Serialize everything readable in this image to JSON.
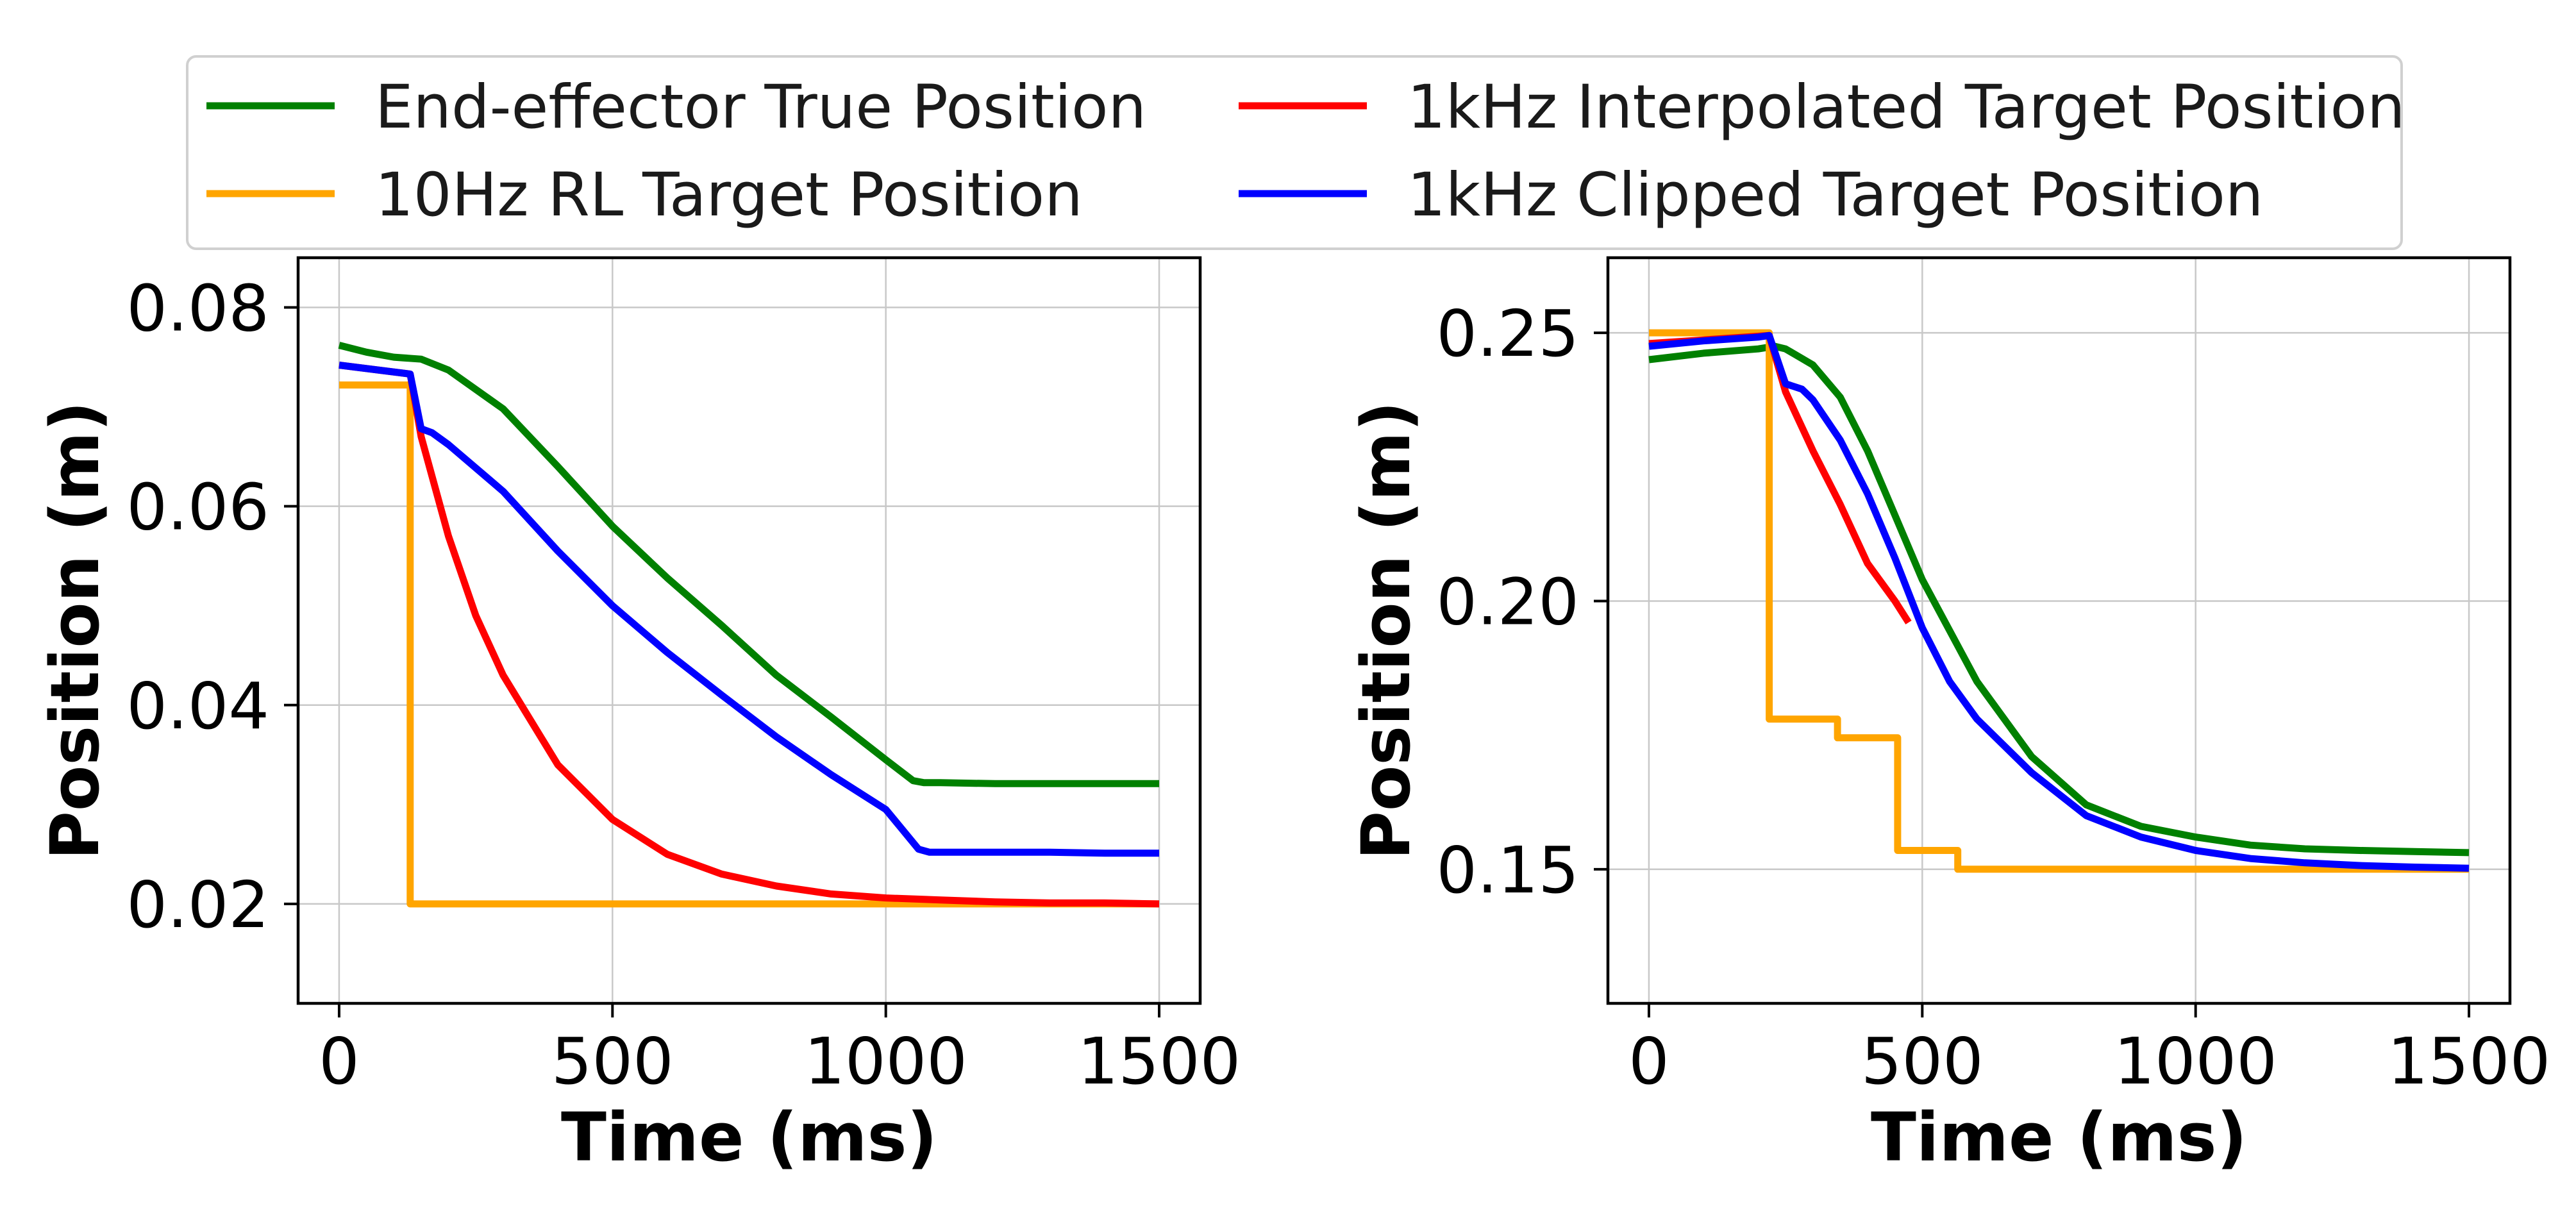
{
  "legend": {
    "placement": "top-center",
    "columns": 2,
    "entries": [
      {
        "label": "End-effector True Position",
        "color": "#008000"
      },
      {
        "label": "1kHz Interpolated Target Position",
        "color": "#ff0000"
      },
      {
        "label": "10Hz RL Target Position",
        "color": "#ffa500"
      },
      {
        "label": "1kHz Clipped Target Position",
        "color": "#0000ff"
      }
    ]
  },
  "chart_data": [
    {
      "type": "line",
      "xlabel": "Time (ms)",
      "ylabel": "Position (m)",
      "xlim": [
        -75,
        1575
      ],
      "ylim": [
        0.01,
        0.085
      ],
      "xticks": [
        0,
        500,
        1000,
        1500
      ],
      "yticks": [
        0.02,
        0.04,
        0.06,
        0.08
      ],
      "xtick_labels": [
        "0",
        "500",
        "1000",
        "1500"
      ],
      "ytick_labels": [
        "0.02",
        "0.04",
        "0.06",
        "0.08"
      ],
      "grid": true,
      "series": [
        {
          "name": "End-effector True Position",
          "color": "#008000",
          "x": [
            0,
            50,
            100,
            150,
            200,
            300,
            400,
            500,
            600,
            700,
            800,
            900,
            1000,
            1050,
            1070,
            1100,
            1200,
            1300,
            1400,
            1500
          ],
          "y": [
            0.0762,
            0.0755,
            0.075,
            0.0748,
            0.0737,
            0.0698,
            0.064,
            0.058,
            0.0528,
            0.048,
            0.043,
            0.0388,
            0.0345,
            0.0324,
            0.0322,
            0.0322,
            0.0321,
            0.0321,
            0.0321,
            0.0321
          ]
        },
        {
          "name": "10Hz RL Target Position",
          "color": "#ffa500",
          "x": [
            0,
            130,
            130,
            1500
          ],
          "y": [
            0.0722,
            0.0722,
            0.02,
            0.02
          ]
        },
        {
          "name": "1kHz Interpolated Target Position",
          "color": "#ff0000",
          "x": [
            0,
            130,
            150,
            200,
            250,
            300,
            400,
            500,
            600,
            700,
            800,
            900,
            1000,
            1100,
            1200,
            1300,
            1400,
            1500
          ],
          "y": [
            0.0742,
            0.0733,
            0.067,
            0.057,
            0.049,
            0.043,
            0.034,
            0.0285,
            0.025,
            0.023,
            0.0218,
            0.021,
            0.0206,
            0.0204,
            0.0202,
            0.0201,
            0.0201,
            0.02
          ]
        },
        {
          "name": "1kHz Clipped Target Position",
          "color": "#0000ff",
          "x": [
            0,
            130,
            150,
            170,
            200,
            300,
            400,
            500,
            600,
            700,
            800,
            900,
            1000,
            1060,
            1080,
            1100,
            1200,
            1300,
            1400,
            1500
          ],
          "y": [
            0.0742,
            0.0733,
            0.0678,
            0.0674,
            0.0662,
            0.0615,
            0.0555,
            0.05,
            0.0453,
            0.041,
            0.0368,
            0.033,
            0.0295,
            0.0255,
            0.0252,
            0.0252,
            0.0252,
            0.0252,
            0.0251,
            0.0251
          ]
        }
      ]
    },
    {
      "type": "line",
      "xlabel": "Time (ms)",
      "ylabel": "Position (m)",
      "xlim": [
        -75,
        1575
      ],
      "ylim": [
        0.125,
        0.264
      ],
      "xticks": [
        0,
        500,
        1000,
        1500
      ],
      "yticks": [
        0.15,
        0.2,
        0.25
      ],
      "xtick_labels": [
        "0",
        "500",
        "1000",
        "1500"
      ],
      "ytick_labels": [
        "0.15",
        "0.20",
        "0.25"
      ],
      "grid": true,
      "series": [
        {
          "name": "End-effector True Position",
          "color": "#008000",
          "x": [
            0,
            100,
            200,
            230,
            250,
            300,
            350,
            400,
            450,
            500,
            600,
            700,
            800,
            900,
            1000,
            1100,
            1200,
            1300,
            1400,
            1500
          ],
          "y": [
            0.245,
            0.2462,
            0.247,
            0.2475,
            0.247,
            0.244,
            0.238,
            0.228,
            0.216,
            0.204,
            0.185,
            0.171,
            0.162,
            0.158,
            0.156,
            0.1545,
            0.1538,
            0.1535,
            0.1533,
            0.1531
          ]
        },
        {
          "name": "10Hz RL Target Position",
          "color": "#ffa500",
          "x": [
            0,
            220,
            220,
            345,
            345,
            455,
            455,
            565,
            565,
            1500
          ],
          "y": [
            0.25,
            0.25,
            0.178,
            0.178,
            0.1745,
            0.1745,
            0.1535,
            0.1535,
            0.15,
            0.15
          ]
        },
        {
          "name": "1kHz Interpolated Target Position",
          "color": "#ff0000",
          "x": [
            0,
            220,
            250,
            300,
            350,
            400,
            450,
            475
          ],
          "y": [
            0.248,
            0.2495,
            0.239,
            0.228,
            0.218,
            0.207,
            0.2,
            0.196
          ]
        },
        {
          "name": "1kHz Clipped Target Position",
          "color": "#0000ff",
          "x": [
            0,
            100,
            200,
            220,
            250,
            280,
            300,
            350,
            400,
            450,
            500,
            550,
            600,
            700,
            800,
            900,
            1000,
            1100,
            1200,
            1300,
            1400,
            1500
          ],
          "y": [
            0.2475,
            0.2485,
            0.2492,
            0.2495,
            0.2405,
            0.2395,
            0.2375,
            0.23,
            0.22,
            0.208,
            0.195,
            0.185,
            0.178,
            0.168,
            0.16,
            0.156,
            0.1535,
            0.152,
            0.1512,
            0.1507,
            0.1504,
            0.1502
          ]
        }
      ]
    }
  ]
}
